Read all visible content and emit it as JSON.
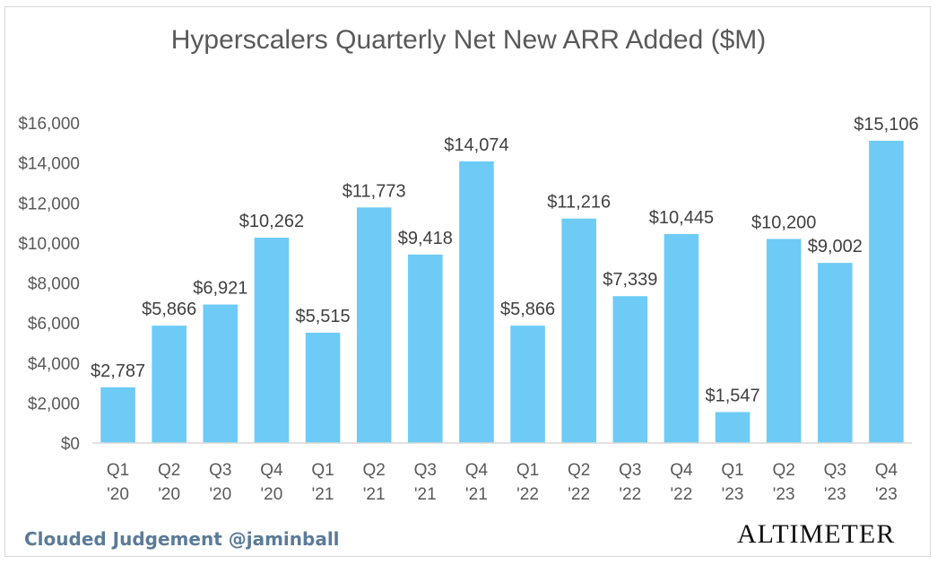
{
  "chart_data": {
    "type": "bar",
    "title": "Hyperscalers Quarterly Net New ARR Added ($M)",
    "xlabel": "",
    "ylabel": "",
    "ylim": [
      0,
      16000
    ],
    "yticks": [
      0,
      2000,
      4000,
      6000,
      8000,
      10000,
      12000,
      14000,
      16000
    ],
    "ytick_labels": [
      "$0",
      "$2,000",
      "$4,000",
      "$6,000",
      "$8,000",
      "$10,000",
      "$12,000",
      "$14,000",
      "$16,000"
    ],
    "categories": [
      [
        "Q1",
        "'20"
      ],
      [
        "Q2",
        "'20"
      ],
      [
        "Q3",
        "'20"
      ],
      [
        "Q4",
        "'20"
      ],
      [
        "Q1",
        "'21"
      ],
      [
        "Q2",
        "'21"
      ],
      [
        "Q3",
        "'21"
      ],
      [
        "Q4",
        "'21"
      ],
      [
        "Q1",
        "'22"
      ],
      [
        "Q2",
        "'22"
      ],
      [
        "Q3",
        "'22"
      ],
      [
        "Q4",
        "'22"
      ],
      [
        "Q1",
        "'23"
      ],
      [
        "Q2",
        "'23"
      ],
      [
        "Q3",
        "'23"
      ],
      [
        "Q4",
        "'23"
      ]
    ],
    "values": [
      2787,
      5866,
      6921,
      10262,
      5515,
      11773,
      9418,
      14074,
      5866,
      11216,
      7339,
      10445,
      1547,
      10200,
      9002,
      15106
    ],
    "data_labels": [
      "$2,787",
      "$5,866",
      "$6,921",
      "$10,262",
      "$5,515",
      "$11,773",
      "$9,418",
      "$14,074",
      "$5,866",
      "$11,216",
      "$7,339",
      "$10,445",
      "$1,547",
      "$10,200",
      "$9,002",
      "$15,106"
    ],
    "bar_color": "#6dcbf5",
    "grid": false,
    "legend": "none"
  },
  "footer": {
    "credit": "Clouded Judgement @jaminball",
    "brand": "ALTIMETER"
  }
}
